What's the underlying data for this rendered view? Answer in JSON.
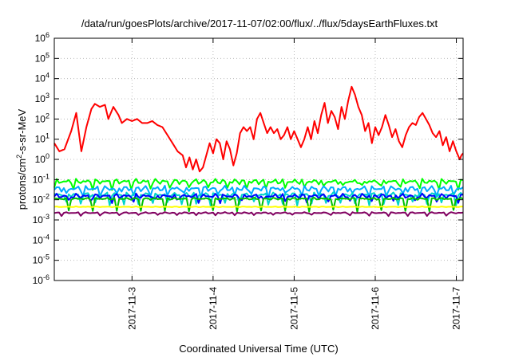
{
  "chart_data": {
    "type": "line",
    "title": "/data/run/goesPlots/archive/2017-11-07/02:00/flux/../flux/5daysEarthFluxes.txt",
    "xlabel": "Coordinated Universal Time (UTC)",
    "ylabel_main": "protons/cm",
    "ylabel_sup": "2",
    "ylabel_rest": "-s-sr-MeV",
    "yscale": "log",
    "ylim": [
      -6,
      6
    ],
    "y_ticks": [
      {
        "base": "10",
        "exp": "-6",
        "power": -6
      },
      {
        "base": "10",
        "exp": "-5",
        "power": -5
      },
      {
        "base": "10",
        "exp": "-4",
        "power": -4
      },
      {
        "base": "10",
        "exp": "-3",
        "power": -3
      },
      {
        "base": "10",
        "exp": "-2",
        "power": -2
      },
      {
        "base": "10",
        "exp": "-1",
        "power": -1
      },
      {
        "base": "10",
        "exp": "0",
        "power": 0
      },
      {
        "base": "10",
        "exp": "1",
        "power": 1
      },
      {
        "base": "10",
        "exp": "2",
        "power": 2
      },
      {
        "base": "10",
        "exp": "3",
        "power": 3
      },
      {
        "base": "10",
        "exp": "4",
        "power": 4
      },
      {
        "base": "10",
        "exp": "5",
        "power": 5
      },
      {
        "base": "10",
        "exp": "6",
        "power": 6
      }
    ],
    "x_range": [
      "2017-11-02T01:00",
      "2017-11-07T02:00"
    ],
    "x_ticks": [
      "2017-11-3",
      "2017-11-4",
      "2017-11-5",
      "2017-11-6",
      "2017-11-7"
    ],
    "x_tick_dates": [
      "2017-11-03",
      "2017-11-04",
      "2017-11-05",
      "2017-11-06",
      "2017-11-07"
    ],
    "grid": true,
    "series": [
      {
        "color": "#ff0000",
        "kind": "time_log10",
        "points": [
          [
            "2017-11-02T01:00",
            0.8
          ],
          [
            "2017-11-02T02:30",
            0.4
          ],
          [
            "2017-11-02T04:00",
            0.5
          ],
          [
            "2017-11-02T06:00",
            1.4
          ],
          [
            "2017-11-02T07:30",
            2.3
          ],
          [
            "2017-11-02T09:00",
            0.4
          ],
          [
            "2017-11-02T10:30",
            1.6
          ],
          [
            "2017-11-02T12:00",
            2.5
          ],
          [
            "2017-11-02T13:00",
            2.75
          ],
          [
            "2017-11-02T14:30",
            2.6
          ],
          [
            "2017-11-02T16:00",
            2.7
          ],
          [
            "2017-11-02T17:00",
            2.0
          ],
          [
            "2017-11-02T18:30",
            2.6
          ],
          [
            "2017-11-02T20:00",
            2.2
          ],
          [
            "2017-11-02T21:00",
            1.8
          ],
          [
            "2017-11-02T22:30",
            2.0
          ],
          [
            "2017-11-03T00:00",
            1.9
          ],
          [
            "2017-11-03T01:30",
            2.0
          ],
          [
            "2017-11-03T03:00",
            1.8
          ],
          [
            "2017-11-03T04:30",
            1.8
          ],
          [
            "2017-11-03T06:00",
            1.9
          ],
          [
            "2017-11-03T07:30",
            1.7
          ],
          [
            "2017-11-03T09:00",
            1.6
          ],
          [
            "2017-11-03T10:30",
            1.2
          ],
          [
            "2017-11-03T12:00",
            0.8
          ],
          [
            "2017-11-03T13:30",
            0.4
          ],
          [
            "2017-11-03T15:00",
            0.2
          ],
          [
            "2017-11-03T16:00",
            -0.4
          ],
          [
            "2017-11-03T17:00",
            0.1
          ],
          [
            "2017-11-03T18:00",
            -0.5
          ],
          [
            "2017-11-03T19:00",
            0.0
          ],
          [
            "2017-11-03T20:00",
            -0.6
          ],
          [
            "2017-11-03T21:00",
            -0.4
          ],
          [
            "2017-11-03T22:00",
            0.2
          ],
          [
            "2017-11-03T23:00",
            0.8
          ],
          [
            "2017-11-04T00:00",
            0.3
          ],
          [
            "2017-11-04T01:00",
            1.0
          ],
          [
            "2017-11-04T02:00",
            0.8
          ],
          [
            "2017-11-04T03:00",
            0.0
          ],
          [
            "2017-11-04T04:00",
            0.9
          ],
          [
            "2017-11-04T05:00",
            0.5
          ],
          [
            "2017-11-04T06:00",
            -0.3
          ],
          [
            "2017-11-04T07:00",
            0.3
          ],
          [
            "2017-11-04T08:00",
            1.3
          ],
          [
            "2017-11-04T09:00",
            1.6
          ],
          [
            "2017-11-04T10:00",
            1.4
          ],
          [
            "2017-11-04T11:00",
            1.6
          ],
          [
            "2017-11-04T12:00",
            1.0
          ],
          [
            "2017-11-04T13:00",
            2.0
          ],
          [
            "2017-11-04T14:00",
            2.3
          ],
          [
            "2017-11-04T15:00",
            1.8
          ],
          [
            "2017-11-04T16:00",
            1.3
          ],
          [
            "2017-11-04T17:00",
            1.6
          ],
          [
            "2017-11-04T18:00",
            1.3
          ],
          [
            "2017-11-04T19:00",
            1.5
          ],
          [
            "2017-11-04T20:00",
            1.0
          ],
          [
            "2017-11-04T21:00",
            1.2
          ],
          [
            "2017-11-04T22:00",
            1.6
          ],
          [
            "2017-11-04T23:00",
            1.0
          ],
          [
            "2017-11-05T00:00",
            1.4
          ],
          [
            "2017-11-05T01:00",
            1.0
          ],
          [
            "2017-11-05T02:00",
            0.6
          ],
          [
            "2017-11-05T03:00",
            1.0
          ],
          [
            "2017-11-05T04:00",
            1.6
          ],
          [
            "2017-11-05T05:00",
            1.0
          ],
          [
            "2017-11-05T06:00",
            1.9
          ],
          [
            "2017-11-05T07:00",
            1.3
          ],
          [
            "2017-11-05T08:00",
            2.2
          ],
          [
            "2017-11-05T09:00",
            2.8
          ],
          [
            "2017-11-05T10:00",
            1.8
          ],
          [
            "2017-11-05T11:00",
            2.4
          ],
          [
            "2017-11-05T12:00",
            2.1
          ],
          [
            "2017-11-05T13:00",
            1.5
          ],
          [
            "2017-11-05T14:00",
            2.6
          ],
          [
            "2017-11-05T15:00",
            2.0
          ],
          [
            "2017-11-05T16:00",
            2.9
          ],
          [
            "2017-11-05T17:00",
            3.6
          ],
          [
            "2017-11-05T18:00",
            3.2
          ],
          [
            "2017-11-05T19:00",
            2.6
          ],
          [
            "2017-11-05T20:00",
            2.2
          ],
          [
            "2017-11-05T21:00",
            1.4
          ],
          [
            "2017-11-05T22:00",
            1.8
          ],
          [
            "2017-11-05T23:00",
            0.8
          ],
          [
            "2017-11-06T00:00",
            1.6
          ],
          [
            "2017-11-06T01:00",
            1.2
          ],
          [
            "2017-11-06T02:00",
            1.6
          ],
          [
            "2017-11-06T03:00",
            2.2
          ],
          [
            "2017-11-06T04:00",
            1.7
          ],
          [
            "2017-11-06T05:00",
            1.1
          ],
          [
            "2017-11-06T06:00",
            1.5
          ],
          [
            "2017-11-06T07:00",
            0.9
          ],
          [
            "2017-11-06T08:00",
            0.6
          ],
          [
            "2017-11-06T09:00",
            1.2
          ],
          [
            "2017-11-06T10:00",
            1.6
          ],
          [
            "2017-11-06T11:00",
            1.8
          ],
          [
            "2017-11-06T12:00",
            1.7
          ],
          [
            "2017-11-06T13:00",
            2.1
          ],
          [
            "2017-11-06T14:00",
            2.3
          ],
          [
            "2017-11-06T15:00",
            2.0
          ],
          [
            "2017-11-06T16:00",
            1.7
          ],
          [
            "2017-11-06T17:00",
            1.3
          ],
          [
            "2017-11-06T18:00",
            1.1
          ],
          [
            "2017-11-06T19:00",
            1.4
          ],
          [
            "2017-11-06T20:00",
            0.7
          ],
          [
            "2017-11-06T21:00",
            1.1
          ],
          [
            "2017-11-06T22:00",
            0.4
          ],
          [
            "2017-11-06T23:00",
            0.9
          ],
          [
            "2017-11-07T00:00",
            0.4
          ],
          [
            "2017-11-07T01:00",
            0.0
          ],
          [
            "2017-11-07T01:30",
            0.2
          ],
          [
            "2017-11-07T02:00",
            0.3
          ]
        ]
      },
      {
        "color": "#00ff00",
        "kind": "band_log10",
        "base": -1.1,
        "amplitude": 0.14,
        "dip": 0.3,
        "period": 8,
        "phase": 0
      },
      {
        "color": "#00aaff",
        "kind": "band_log10",
        "base": -1.45,
        "amplitude": 0.15,
        "dip": 0.32,
        "period": 7,
        "phase": 2
      },
      {
        "color": "#00d4c8",
        "kind": "band_log10",
        "base": -1.75,
        "amplitude": 0.12,
        "dip": 0.45,
        "period": 6,
        "phase": 1
      },
      {
        "color": "#0000ff",
        "kind": "band_log10",
        "base": -1.82,
        "amplitude": 0.13,
        "dip": 0.25,
        "period": 9,
        "phase": 3
      },
      {
        "color": "#00c000",
        "kind": "band_log10",
        "base": -1.95,
        "amplitude": 0.06,
        "dip": 0.6,
        "period": 10,
        "phase": 4
      },
      {
        "color": "#ffff00",
        "kind": "band_log10",
        "base": -2.35,
        "amplitude": 0.02,
        "dip": 0.0,
        "period": 12,
        "phase": 0
      },
      {
        "color": "#800060",
        "kind": "band_log10",
        "base": -2.65,
        "amplitude": 0.04,
        "dip": 0.12,
        "period": 8,
        "phase": 5
      }
    ]
  }
}
